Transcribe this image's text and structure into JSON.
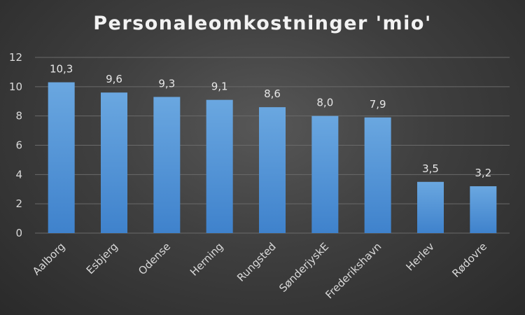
{
  "chart_data": {
    "type": "bar",
    "title": "Personaleomkostninger 'mio'",
    "categories": [
      "Aalborg",
      "Esbjerg",
      "Odense",
      "Herning",
      "Rungsted",
      "SønderjyskE",
      "Frederikshavn",
      "Herlev",
      "Rødovre"
    ],
    "values": [
      10.3,
      9.6,
      9.3,
      9.1,
      8.6,
      8.0,
      7.9,
      3.5,
      3.2
    ],
    "value_labels": [
      "10,3",
      "9,6",
      "9,3",
      "9,1",
      "8,6",
      "8,0",
      "7,9",
      "3,5",
      "3,2"
    ],
    "xlabel": "",
    "ylabel": "",
    "ylim": [
      0,
      12
    ],
    "yticks": [
      0,
      2,
      4,
      6,
      8,
      10,
      12
    ],
    "grid": true,
    "legend": "none",
    "colors": {
      "bar_top": "#6aa7e0",
      "bar_bottom": "#3f82cc",
      "grid": "#6a6a6a",
      "text": "#d9d9d9",
      "title": "#f2f2f2"
    }
  }
}
